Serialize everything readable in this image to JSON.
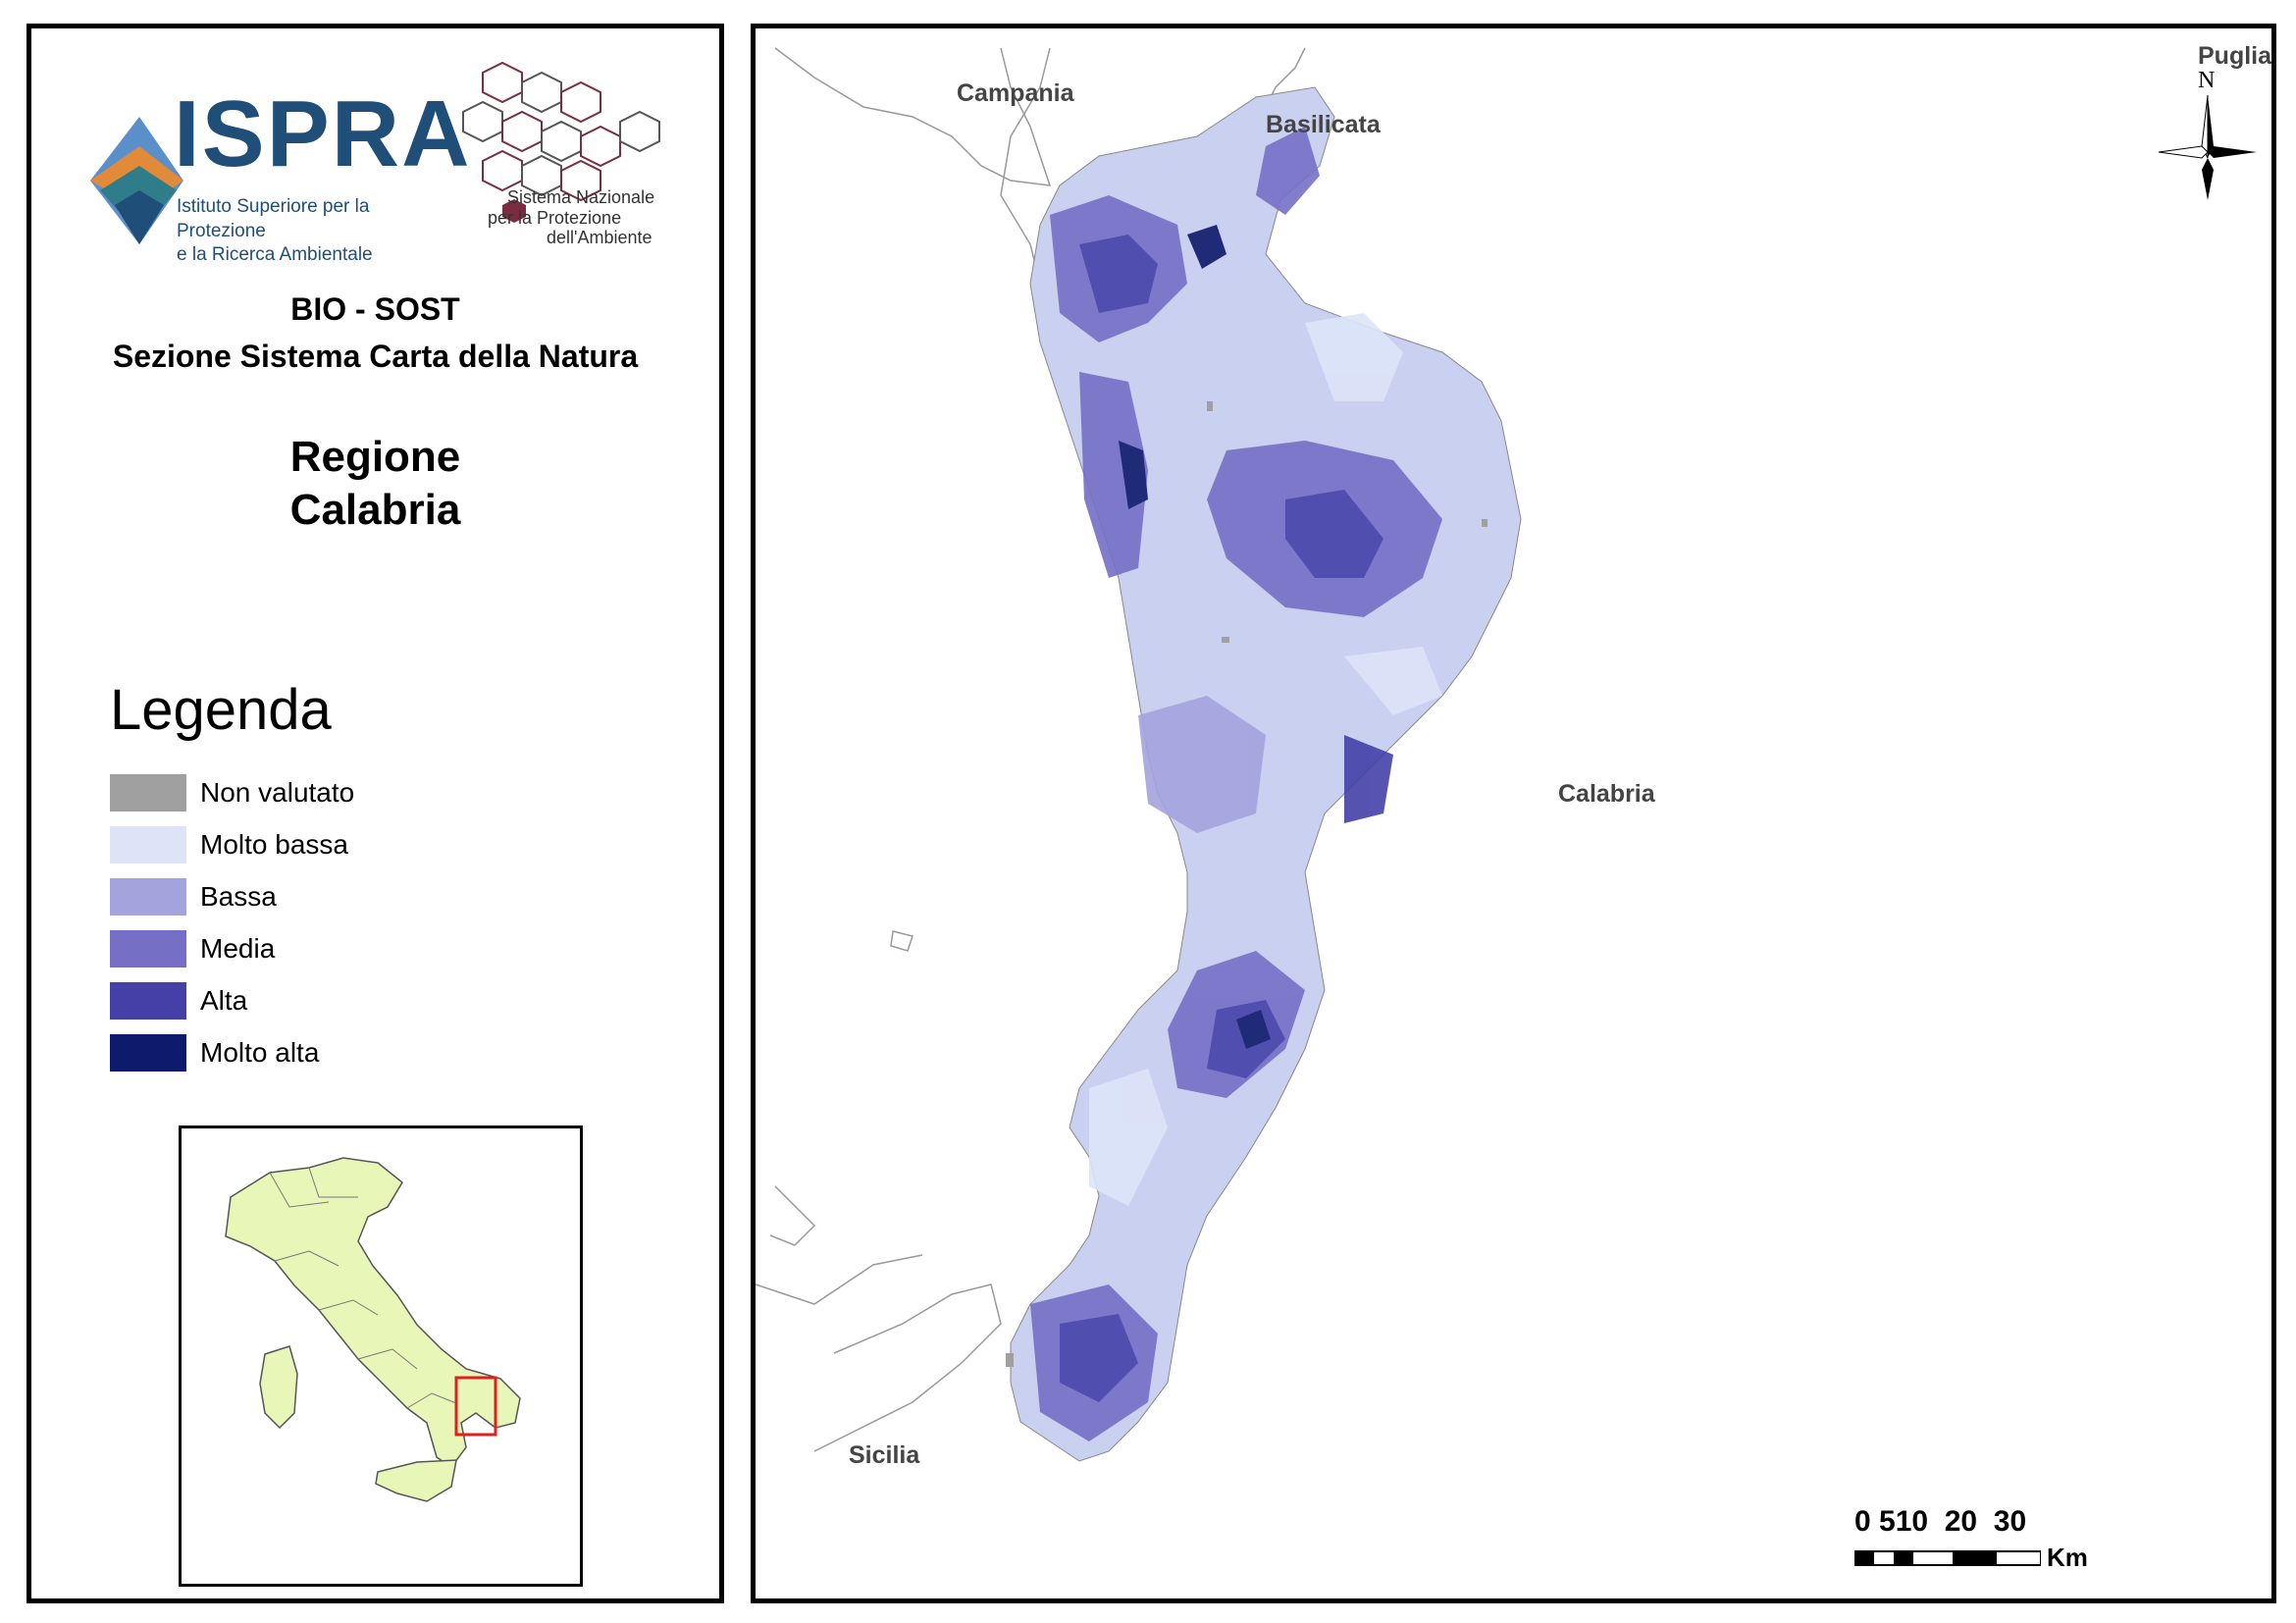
{
  "header": {
    "ispra_name": "ISPRA",
    "ispra_subtitle_line1": "Istituto Superiore per la Protezione",
    "ispra_subtitle_line2": "e la Ricerca Ambientale",
    "snpa_line1": "Sistema Nazionale",
    "snpa_line2": "per la Protezione",
    "snpa_line3": "dell'Ambiente"
  },
  "section": {
    "line1": "BIO - SOST",
    "line2": "Sezione Sistema Carta della Natura"
  },
  "region": {
    "line1": "Regione",
    "line2": "Calabria"
  },
  "legend": {
    "title": "Legenda",
    "items": [
      {
        "label": "Non valutato",
        "color": "#a0a0a0"
      },
      {
        "label": "Molto bassa",
        "color": "#dde4f8"
      },
      {
        "label": "Bassa",
        "color": "#a3a3de"
      },
      {
        "label": "Media",
        "color": "#7570c6"
      },
      {
        "label": "Alta",
        "color": "#4440a8"
      },
      {
        "label": "Molto alta",
        "color": "#0e1a6b"
      }
    ]
  },
  "inset": {
    "italy_fill": "#e8f7b8",
    "highlight_color": "#e02020"
  },
  "map": {
    "labels": {
      "campania": "Campania",
      "basilicata": "Basilicata",
      "puglia": "Puglia",
      "calabria": "Calabria",
      "sicilia": "Sicilia"
    },
    "north": "N",
    "scale_numbers": "0 510  20  30",
    "scale_unit": "Km"
  }
}
